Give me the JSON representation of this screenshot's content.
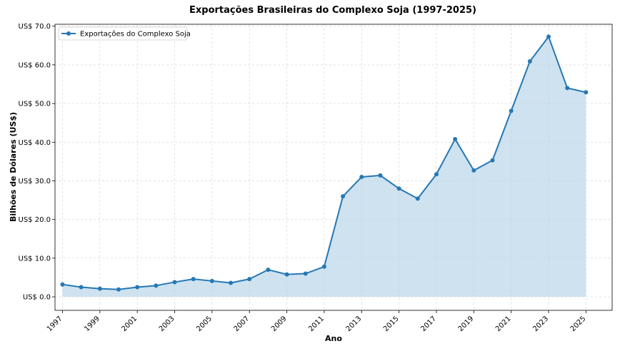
{
  "chart_data": {
    "type": "line",
    "title": "Exportações Brasileiras do Complexo Soja (1997-2025)",
    "xlabel": "Ano",
    "ylabel": "Bilhões de Dólares (US$)",
    "x": [
      1997,
      1998,
      1999,
      2000,
      2001,
      2002,
      2003,
      2004,
      2005,
      2006,
      2007,
      2008,
      2009,
      2010,
      2011,
      2012,
      2013,
      2014,
      2015,
      2016,
      2017,
      2018,
      2019,
      2020,
      2021,
      2022,
      2023,
      2024,
      2025
    ],
    "x_ticks": [
      1997,
      1999,
      2001,
      2003,
      2005,
      2007,
      2009,
      2011,
      2013,
      2015,
      2017,
      2019,
      2021,
      2023,
      2025
    ],
    "x_tick_labels": [
      "1997",
      "1999",
      "2001",
      "2003",
      "2005",
      "2007",
      "2009",
      "2011",
      "2013",
      "2015",
      "2017",
      "2019",
      "2021",
      "2023",
      "2025"
    ],
    "y_ticks": [
      0,
      10,
      20,
      30,
      40,
      50,
      60,
      70
    ],
    "y_tick_labels": [
      "US$ 0.0",
      "US$ 10.0",
      "US$ 20.0",
      "US$ 30.0",
      "US$ 40.0",
      "US$ 50.0",
      "US$ 60.0",
      "US$ 70.0"
    ],
    "ylim": [
      -3.5,
      70.5
    ],
    "xlim": [
      1996.6,
      2026.4
    ],
    "grid": true,
    "legend_position": "top-left",
    "series": [
      {
        "name": "Exportações do Complexo Soja",
        "color": "#2678b4",
        "fill_color": "#b9d5ea",
        "marker": "circle",
        "values": [
          3.2,
          2.5,
          2.1,
          1.9,
          2.5,
          2.9,
          3.8,
          4.6,
          4.1,
          3.6,
          4.6,
          7.0,
          5.8,
          6.0,
          7.8,
          26.0,
          31.0,
          31.4,
          28.0,
          25.4,
          31.7,
          40.8,
          32.7,
          35.3,
          48.1,
          60.9,
          67.3,
          54.0,
          52.9
        ]
      }
    ]
  }
}
